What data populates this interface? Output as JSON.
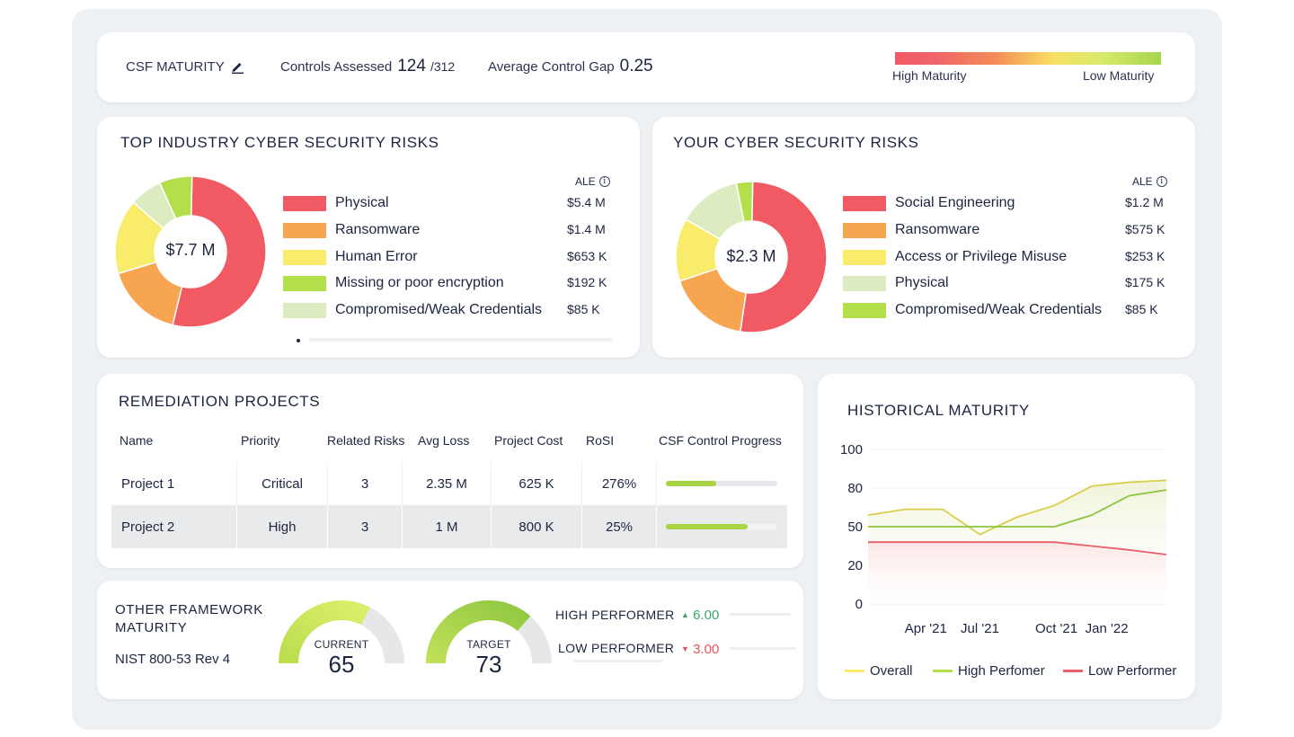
{
  "header": {
    "title": "CSF MATURITY",
    "controls_label": "Controls Assessed",
    "controls_value": "124",
    "controls_total": "/312",
    "gap_label": "Average Control Gap",
    "gap_value": "0.25",
    "scale_high": "High Maturity",
    "scale_low": "Low Maturity"
  },
  "industry_risks": {
    "title": "TOP INDUSTRY CYBER SECURITY RISKS",
    "ale_label": "ALE",
    "total": "$7.7 M",
    "items": [
      {
        "label": "Physical",
        "value": "$5.4 M",
        "color": "#f25a63"
      },
      {
        "label": "Ransomware",
        "value": "$1.4 M",
        "color": "#f8a552"
      },
      {
        "label": "Human Error",
        "value": "$653 K",
        "color": "#f8ec6a"
      },
      {
        "label": "Missing or poor encryption",
        "value": "$192 K",
        "color": "#b3e04a"
      },
      {
        "label": "Compromised/Weak Credentials",
        "value": "$85 K",
        "color": "#dcecc0"
      }
    ],
    "slices": [
      {
        "label": "Physical",
        "share": 0.535,
        "color": "#f25a63"
      },
      {
        "label": "Ransomware",
        "share": 0.165,
        "color": "#f8a552"
      },
      {
        "label": "Human Error",
        "share": 0.16,
        "color": "#f8ec6a"
      },
      {
        "label": "Compromised/Weak Credentials",
        "share": 0.07,
        "color": "#dcecc0"
      },
      {
        "label": "Missing or poor encryption",
        "share": 0.07,
        "color": "#b3e04a"
      }
    ]
  },
  "your_risks": {
    "title": "YOUR CYBER SECURITY RISKS",
    "ale_label": "ALE",
    "total": "$2.3 M",
    "items": [
      {
        "label": "Social Engineering",
        "value": "$1.2 M",
        "color": "#f25a63"
      },
      {
        "label": "Ransomware",
        "value": "$575 K",
        "color": "#f8a552"
      },
      {
        "label": "Access or Privilege Misuse",
        "value": "$253 K",
        "color": "#f8ec6a"
      },
      {
        "label": "Physical",
        "value": "$175 K",
        "color": "#dcecc0"
      },
      {
        "label": "Compromised/Weak Credentials",
        "value": "$85 K",
        "color": "#b3e04a"
      }
    ],
    "slices": [
      {
        "label": "Social Engineering",
        "share": 0.52,
        "color": "#f25a63"
      },
      {
        "label": "Ransomware",
        "share": 0.175,
        "color": "#f8a552"
      },
      {
        "label": "Access or Privilege Misuse",
        "share": 0.135,
        "color": "#f8ec6a"
      },
      {
        "label": "Physical",
        "share": 0.135,
        "color": "#dcecc0"
      },
      {
        "label": "Compromised/Weak Credentials",
        "share": 0.035,
        "color": "#b3e04a"
      }
    ]
  },
  "remediation": {
    "title": "REMEDIATION PROJECTS",
    "columns": [
      "Name",
      "Priority",
      "Related Risks",
      "Avg Loss",
      "Project Cost",
      "RoSI",
      "CSF Control Progress"
    ],
    "rows": [
      {
        "name": "Project 1",
        "priority": "Critical",
        "related": "3",
        "avg_loss": "2.35 M",
        "cost": "625 K",
        "rosi": "276%",
        "progress": 0.45
      },
      {
        "name": "Project 2",
        "priority": "High",
        "related": "3",
        "avg_loss": "1 M",
        "cost": "800 K",
        "rosi": "25%",
        "progress": 0.73
      }
    ]
  },
  "other_framework": {
    "title_line1": "OTHER FRAMEWORK",
    "title_line2": "MATURITY",
    "framework": "NIST 800-53 Rev 4",
    "current_label": "CURRENT",
    "current_value": "65",
    "current_fraction": 0.65,
    "target_label": "TARGET",
    "target_value": "73",
    "target_fraction": 0.73,
    "high_label": "HIGH PERFORMER",
    "high_value": "6.00",
    "low_label": "LOW PERFORMER",
    "low_value": "3.00",
    "up_color": "#3aa76d",
    "down_color": "#e8515a"
  },
  "historical": {
    "title": "HISTORICAL MATURITY",
    "legend": {
      "overall": "Overall",
      "high": "High Perfomer",
      "low": "Low Performer"
    }
  },
  "chart_data": {
    "type": "line",
    "title": "HISTORICAL MATURITY",
    "x": [
      0,
      1,
      2,
      3,
      4,
      5,
      6,
      7,
      8
    ],
    "x_tick_labels": [
      {
        "pos": 1.55,
        "label": "Apr '21"
      },
      {
        "pos": 3.0,
        "label": "Jul '21"
      },
      {
        "pos": 5.05,
        "label": "Oct '21"
      },
      {
        "pos": 6.4,
        "label": "Jan '22"
      }
    ],
    "y_ticks": [
      {
        "label": "100",
        "pos": 0
      },
      {
        "label": "80",
        "pos": 1
      },
      {
        "label": "50",
        "pos": 2
      },
      {
        "label": "20",
        "pos": 3
      },
      {
        "label": "0",
        "pos": 4
      }
    ],
    "ylim_pos": [
      0,
      4
    ],
    "series": [
      {
        "name": "Overall",
        "color": "#d8cf4a",
        "values": [
          1.7,
          1.55,
          1.55,
          2.2,
          1.75,
          1.45,
          0.95,
          0.85,
          0.8
        ],
        "fill": "#eef0d2"
      },
      {
        "name": "High Perfomer",
        "color": "#8cc63f",
        "values": [
          2.0,
          2.0,
          2.0,
          2.0,
          2.0,
          2.0,
          1.7,
          1.2,
          1.05
        ]
      },
      {
        "name": "Low Performer",
        "color": "#e86068",
        "values": [
          2.4,
          2.4,
          2.4,
          2.4,
          2.4,
          2.4,
          2.5,
          2.6,
          2.72
        ],
        "fill": "#fbe3e3"
      }
    ]
  }
}
